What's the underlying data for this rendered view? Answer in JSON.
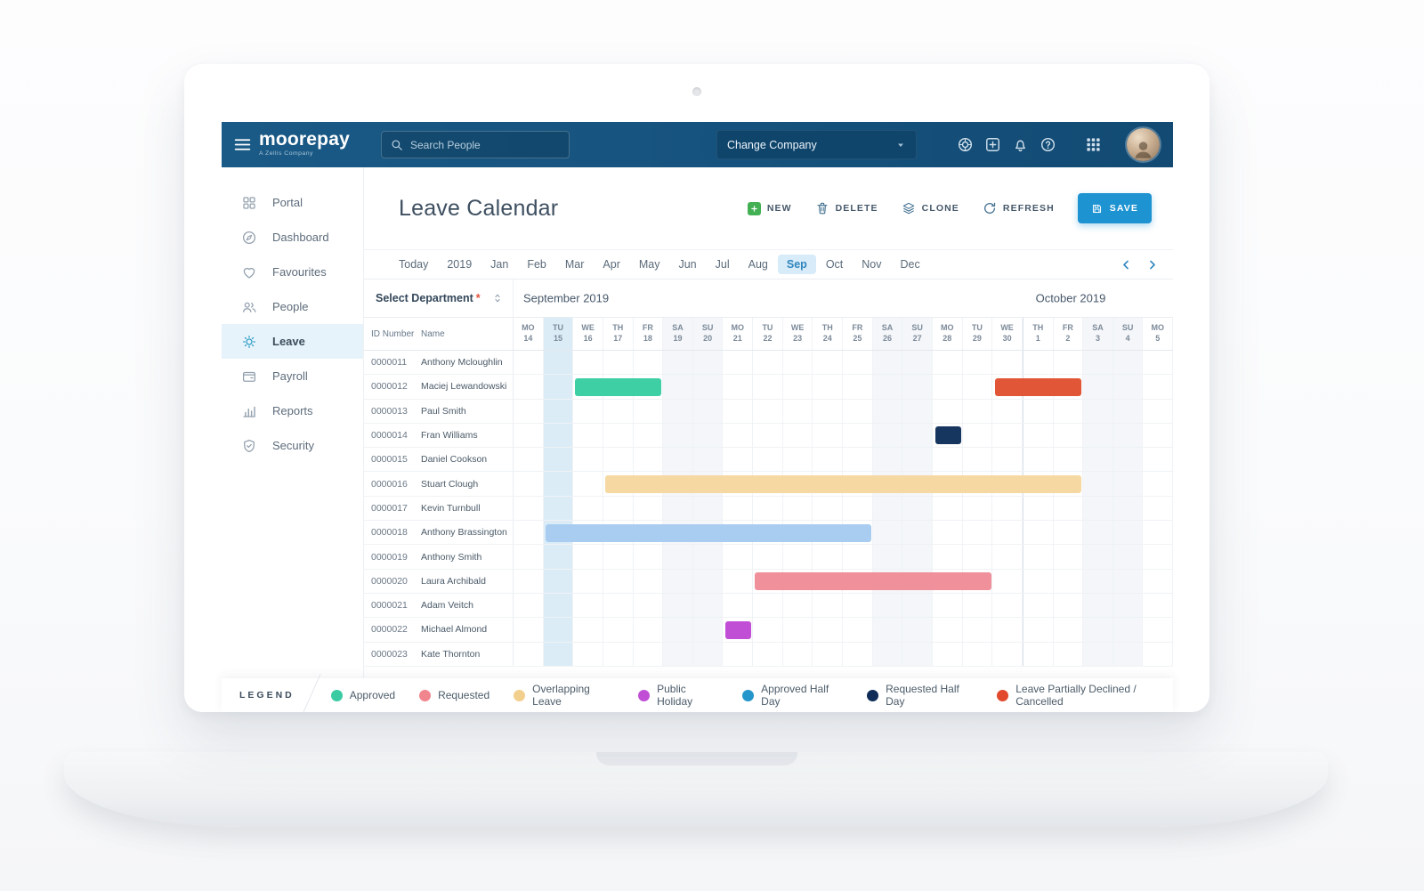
{
  "navbar": {
    "logo": "moorepay",
    "logo_tagline": "A Zellis Company",
    "search_placeholder": "Search People",
    "company_selector": "Change Company"
  },
  "sidebar": {
    "items": [
      {
        "label": "Portal",
        "icon": "grid4",
        "active": false
      },
      {
        "label": "Dashboard",
        "icon": "compass",
        "active": false
      },
      {
        "label": "Favourites",
        "icon": "heart",
        "active": false
      },
      {
        "label": "People",
        "icon": "people",
        "active": false
      },
      {
        "label": "Leave",
        "icon": "sun",
        "active": true
      },
      {
        "label": "Payroll",
        "icon": "wallet",
        "active": false
      },
      {
        "label": "Reports",
        "icon": "chart",
        "active": false
      },
      {
        "label": "Security",
        "icon": "shield",
        "active": false
      }
    ]
  },
  "toolbar": {
    "title": "Leave Calendar",
    "buttons": [
      {
        "label": "NEW"
      },
      {
        "label": "DELETE"
      },
      {
        "label": "CLONE"
      },
      {
        "label": "REFRESH"
      },
      {
        "label": "SAVE"
      }
    ]
  },
  "monthbar": {
    "items": [
      "Today",
      "2019",
      "Jan",
      "Feb",
      "Mar",
      "Apr",
      "May",
      "Jun",
      "Jul",
      "Aug",
      "Sep",
      "Oct",
      "Nov",
      "Dec"
    ],
    "selected": "Sep"
  },
  "calendar": {
    "department_label": "Select Department",
    "required_marker": "*",
    "month_left": "September 2019",
    "month_right": "October 2019",
    "id_header": "ID Number",
    "name_header": "Name",
    "today_index": 1,
    "october_start_index": 17,
    "days": [
      {
        "dow": "MO",
        "num": "14"
      },
      {
        "dow": "TU",
        "num": "15"
      },
      {
        "dow": "WE",
        "num": "16"
      },
      {
        "dow": "TH",
        "num": "17"
      },
      {
        "dow": "FR",
        "num": "18"
      },
      {
        "dow": "SA",
        "num": "19"
      },
      {
        "dow": "SU",
        "num": "20"
      },
      {
        "dow": "MO",
        "num": "21"
      },
      {
        "dow": "TU",
        "num": "22"
      },
      {
        "dow": "WE",
        "num": "23"
      },
      {
        "dow": "TH",
        "num": "24"
      },
      {
        "dow": "FR",
        "num": "25"
      },
      {
        "dow": "SA",
        "num": "26"
      },
      {
        "dow": "SU",
        "num": "27"
      },
      {
        "dow": "MO",
        "num": "28"
      },
      {
        "dow": "TU",
        "num": "29"
      },
      {
        "dow": "WE",
        "num": "30"
      },
      {
        "dow": "TH",
        "num": "1"
      },
      {
        "dow": "FR",
        "num": "2"
      },
      {
        "dow": "SA",
        "num": "3"
      },
      {
        "dow": "SU",
        "num": "4"
      },
      {
        "dow": "MO",
        "num": "5"
      }
    ],
    "bar_colors": {
      "approved": "#3fcfa5",
      "requested": "#f0909a",
      "overlapping": "#f6d9a2",
      "public_holiday": "#c14fd6",
      "approved_half_day": "#a9cdf1",
      "requested_half_day": "#17365f",
      "declined": "#e15636"
    },
    "rows": [
      {
        "id": "0000011",
        "name": "Anthony Mcloughlin",
        "bars": []
      },
      {
        "id": "0000012",
        "name": "Maciej Lewandowski",
        "bars": [
          {
            "type": "approved",
            "start": 2,
            "end": 4
          },
          {
            "type": "declined",
            "start": 16,
            "end": 18
          }
        ]
      },
      {
        "id": "0000013",
        "name": "Paul Smith",
        "bars": []
      },
      {
        "id": "0000014",
        "name": "Fran Williams",
        "bars": [
          {
            "type": "requested_half_day",
            "start": 14,
            "end": 14
          }
        ]
      },
      {
        "id": "0000015",
        "name": "Daniel Cookson",
        "bars": []
      },
      {
        "id": "0000016",
        "name": "Stuart Clough",
        "bars": [
          {
            "type": "overlapping",
            "start": 3,
            "end": 18
          }
        ]
      },
      {
        "id": "0000017",
        "name": "Kevin Turnbull",
        "bars": []
      },
      {
        "id": "0000018",
        "name": "Anthony Brassington",
        "bars": [
          {
            "type": "approved_half_day",
            "start": 1,
            "end": 11
          }
        ]
      },
      {
        "id": "0000019",
        "name": "Anthony Smith",
        "bars": []
      },
      {
        "id": "0000020",
        "name": "Laura Archibald",
        "bars": [
          {
            "type": "requested",
            "start": 8,
            "end": 15
          }
        ]
      },
      {
        "id": "0000021",
        "name": "Adam Veitch",
        "bars": []
      },
      {
        "id": "0000022",
        "name": "Michael Almond",
        "bars": [
          {
            "type": "public_holiday",
            "start": 7,
            "end": 7
          }
        ]
      },
      {
        "id": "0000023",
        "name": "Kate Thornton",
        "bars": []
      }
    ]
  },
  "legend": {
    "label": "LEGEND",
    "items": [
      {
        "label": "Approved",
        "color": "#3acba2"
      },
      {
        "label": "Requested",
        "color": "#f0858e"
      },
      {
        "label": "Overlapping Leave",
        "color": "#f3cf8e"
      },
      {
        "label": "Public Holiday",
        "color": "#c14fd6"
      },
      {
        "label": "Approved Half Day",
        "color": "#2596cc"
      },
      {
        "label": "Requested Half Day",
        "color": "#0e2c57"
      },
      {
        "label": "Leave Partially Declined / Cancelled",
        "color": "#e2492c"
      }
    ]
  }
}
